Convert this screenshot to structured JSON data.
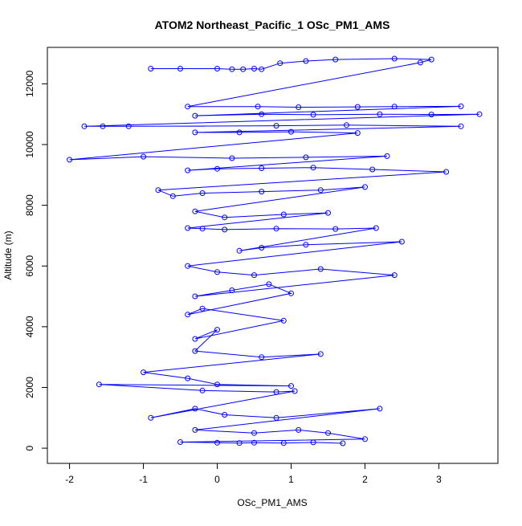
{
  "chart_data": {
    "type": "scatter",
    "title": "ATOM2 Northeast_Pacific_1 OSc_PM1_AMS",
    "xlabel": "OSc_PM1_AMS",
    "ylabel": "Altitude (m)",
    "xlim": [
      -2.3,
      3.8
    ],
    "ylim": [
      -500,
      13200
    ],
    "xticks": [
      -2,
      -1,
      0,
      1,
      2,
      3
    ],
    "yticks": [
      0,
      2000,
      4000,
      6000,
      8000,
      10000,
      12000
    ],
    "xtick_labels": [
      "-2",
      "-1",
      "0",
      "1",
      "2",
      "3"
    ],
    "ytick_labels": [
      "0",
      "2000",
      "4000",
      "6000",
      "8000",
      "10000",
      "12000"
    ],
    "marker": "open-circle",
    "connected": true,
    "grid": false,
    "color": "#0000ff",
    "series": [
      {
        "points": [
          [
            -0.5,
            12500
          ],
          [
            -0.9,
            12500
          ],
          [
            0.0,
            12500
          ],
          [
            0.2,
            12480
          ],
          [
            0.35,
            12480
          ],
          [
            0.5,
            12500
          ],
          [
            0.6,
            12480
          ],
          [
            0.85,
            12680
          ],
          [
            1.2,
            12750
          ],
          [
            1.6,
            12800
          ],
          [
            2.4,
            12830
          ],
          [
            2.9,
            12800
          ],
          [
            2.75,
            12700
          ],
          [
            -0.4,
            11250
          ],
          [
            0.55,
            11250
          ],
          [
            1.1,
            11230
          ],
          [
            1.9,
            11240
          ],
          [
            2.4,
            11250
          ],
          [
            3.3,
            11260
          ],
          [
            -0.3,
            10950
          ],
          [
            0.6,
            11000
          ],
          [
            1.3,
            10980
          ],
          [
            2.2,
            11000
          ],
          [
            2.9,
            10990
          ],
          [
            3.55,
            11000
          ],
          [
            -1.8,
            10600
          ],
          [
            -1.55,
            10600
          ],
          [
            -1.2,
            10600
          ],
          [
            0.8,
            10620
          ],
          [
            1.75,
            10640
          ],
          [
            3.3,
            10600
          ],
          [
            -0.3,
            10400
          ],
          [
            0.3,
            10400
          ],
          [
            1.0,
            10420
          ],
          [
            1.9,
            10380
          ],
          [
            -2.0,
            9500
          ],
          [
            -1.0,
            9600
          ],
          [
            0.2,
            9550
          ],
          [
            1.2,
            9580
          ],
          [
            2.3,
            9620
          ],
          [
            -0.4,
            9150
          ],
          [
            0.0,
            9200
          ],
          [
            0.6,
            9220
          ],
          [
            1.3,
            9240
          ],
          [
            2.1,
            9180
          ],
          [
            3.1,
            9100
          ],
          [
            -0.8,
            8500
          ],
          [
            -0.6,
            8300
          ],
          [
            -0.2,
            8400
          ],
          [
            0.6,
            8450
          ],
          [
            1.4,
            8500
          ],
          [
            2.0,
            8600
          ],
          [
            -0.3,
            7800
          ],
          [
            0.1,
            7600
          ],
          [
            0.9,
            7700
          ],
          [
            1.5,
            7750
          ],
          [
            -0.4,
            7250
          ],
          [
            -0.2,
            7230
          ],
          [
            0.1,
            7200
          ],
          [
            0.8,
            7230
          ],
          [
            1.6,
            7220
          ],
          [
            2.15,
            7250
          ],
          [
            0.3,
            6500
          ],
          [
            0.6,
            6600
          ],
          [
            1.2,
            6700
          ],
          [
            2.5,
            6800
          ],
          [
            -0.4,
            6000
          ],
          [
            0.0,
            5800
          ],
          [
            0.5,
            5700
          ],
          [
            1.4,
            5900
          ],
          [
            2.4,
            5700
          ],
          [
            -0.3,
            5000
          ],
          [
            0.2,
            5200
          ],
          [
            0.7,
            5400
          ],
          [
            1.0,
            5100
          ],
          [
            -0.4,
            4400
          ],
          [
            -0.2,
            4600
          ],
          [
            0.9,
            4200
          ],
          [
            -0.3,
            3600
          ],
          [
            0.0,
            3900
          ],
          [
            -0.3,
            3200
          ],
          [
            0.6,
            3000
          ],
          [
            1.4,
            3100
          ],
          [
            -1.0,
            2500
          ],
          [
            -0.4,
            2300
          ],
          [
            0.0,
            2100
          ],
          [
            1.0,
            2050
          ],
          [
            -1.6,
            2100
          ],
          [
            -0.2,
            1900
          ],
          [
            0.8,
            1850
          ],
          [
            1.05,
            1880
          ],
          [
            -0.9,
            1000
          ],
          [
            -0.3,
            1300
          ],
          [
            0.1,
            1100
          ],
          [
            0.8,
            1000
          ],
          [
            2.2,
            1300
          ],
          [
            -0.3,
            600
          ],
          [
            0.5,
            500
          ],
          [
            1.1,
            600
          ],
          [
            1.5,
            500
          ],
          [
            2.0,
            300
          ],
          [
            -0.5,
            200
          ],
          [
            0.0,
            180
          ],
          [
            0.3,
            170
          ],
          [
            0.5,
            180
          ],
          [
            0.9,
            170
          ],
          [
            1.3,
            190
          ],
          [
            1.7,
            160
          ]
        ]
      }
    ]
  }
}
